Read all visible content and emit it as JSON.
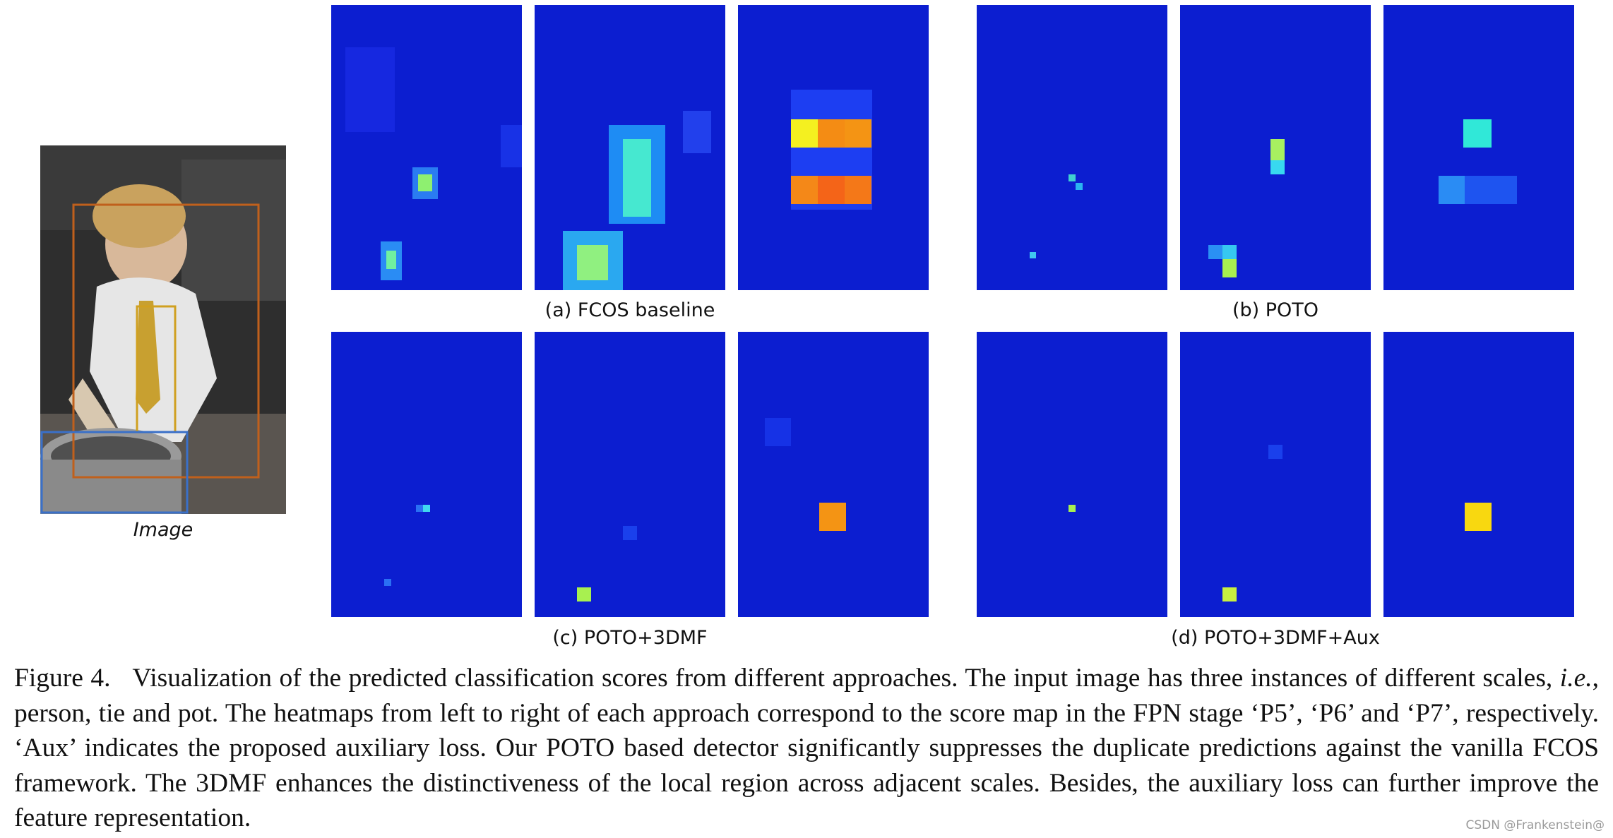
{
  "image_label": "Image",
  "subfigures": [
    {
      "id": "a",
      "label": "(a) FCOS baseline"
    },
    {
      "id": "b",
      "label": "(b) POTO"
    },
    {
      "id": "c",
      "label": "(c) POTO+3DMF"
    },
    {
      "id": "d",
      "label": "(d) POTO+3DMF+Aux"
    }
  ],
  "caption": {
    "figure_number": "Figure 4.",
    "part1": "Visualization of the predicted classification scores from different approaches. The input image has three instances of different scales, ",
    "ie": "i.e.",
    "part2": ", person, tie and pot. The heatmaps from left to right of each approach correspond to the score map in the FPN stage ‘P5’, ‘P6’ and ‘P7’, respectively. ‘Aux’ indicates the proposed auxiliary loss. Our POTO based detector significantly suppresses the duplicate predictions against the vanilla FCOS framework. The 3DMF enhances the distinctiveness of the local region across adjacent scales. Besides, the auxiliary loss can further improve the feature representation."
  },
  "watermark": "CSDN @Frankenstein@",
  "colors": {
    "heatmap_background": "#0c1ed0",
    "person_box": "#c0601c",
    "tie_box": "#d0a020",
    "pot_box": "#3a70c8"
  }
}
